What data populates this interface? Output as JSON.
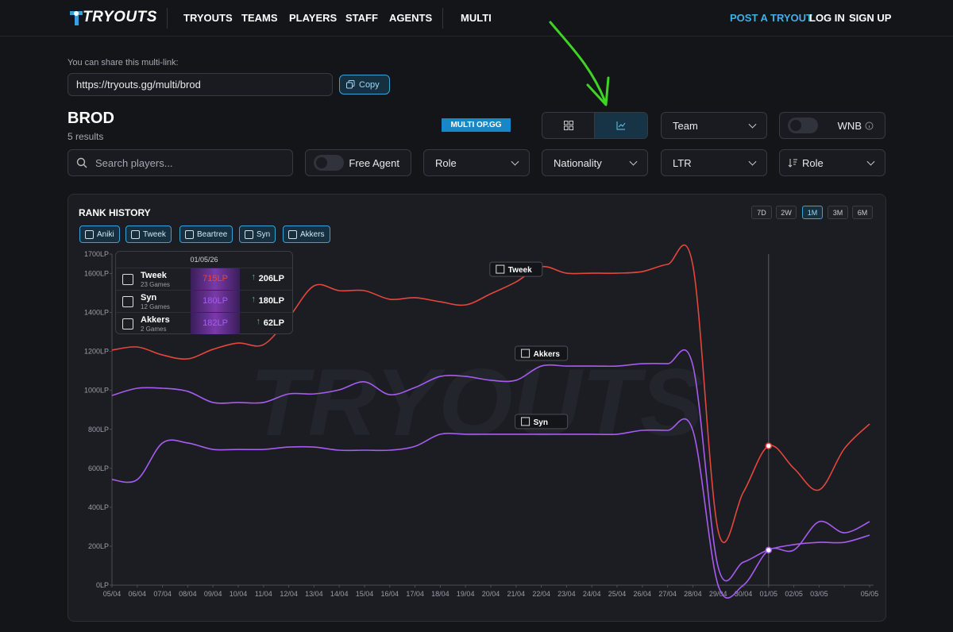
{
  "nav": {
    "logo": "TRYOUTS",
    "links": [
      "TRYOUTS",
      "TEAMS",
      "PLAYERS",
      "STAFF",
      "AGENTS",
      "MULTI"
    ],
    "right": [
      "POST A TRYOUT",
      "LOG IN",
      "SIGN UP"
    ]
  },
  "share": {
    "label": "You can share this multi-link:",
    "url": "https://tryouts.gg/multi/brod",
    "button": "Copy"
  },
  "header": {
    "title": "BROD",
    "subtitle": "5 results",
    "badge": "MULTI OP.GG"
  },
  "filters": {
    "team": "Team",
    "wnb": "WNB",
    "search": "Search players...",
    "free_agent": "Free Agent",
    "role": "Role",
    "nationality": "Nationality",
    "sort": "LTR",
    "sort_role": "Role"
  },
  "panel": {
    "title": "RANK HISTORY",
    "ranges": [
      "7D",
      "2W",
      "1M",
      "3M",
      "6M"
    ],
    "active_range": "1M",
    "players": [
      "Aniki",
      "Tweek",
      "Beartree",
      "Syn",
      "Akkers"
    ],
    "watermark": "TRYOUTS"
  },
  "tooltip": {
    "date": "01/05/26",
    "rows": [
      {
        "name": "Tweek",
        "games": "23 Games",
        "rank": "715LP",
        "gain": "206LP"
      },
      {
        "name": "Syn",
        "games": "12 Games",
        "rank": "180LP",
        "gain": "180LP"
      },
      {
        "name": "Akkers",
        "games": "2 Games",
        "rank": "182LP",
        "gain": "62LP"
      }
    ]
  },
  "chart_data": {
    "type": "line",
    "categories": [
      "05/04",
      "06/04",
      "07/04",
      "08/04",
      "09/04",
      "10/04",
      "11/04",
      "12/04",
      "13/04",
      "14/04",
      "15/04",
      "16/04",
      "17/04",
      "18/04",
      "19/04",
      "20/04",
      "21/04",
      "22/04",
      "23/04",
      "24/04",
      "25/04",
      "26/04",
      "27/04",
      "28/04",
      "29/04",
      "30/04",
      "01/05",
      "02/05",
      "03/05",
      null,
      "05/05"
    ],
    "series": [
      {
        "name": "Tweek",
        "color": "#e4463c",
        "values": [
          1207,
          1223,
          1182,
          1162,
          1211,
          1243,
          1235,
          1374,
          1537,
          1512,
          1512,
          1468,
          1476,
          1455,
          1439,
          1496,
          1557,
          1635,
          1602,
          1602,
          1602,
          1610,
          1647,
          1643,
          281,
          477,
          715,
          600,
          489,
          701,
          828
        ]
      },
      {
        "name": "Akkers",
        "color": "#a65cf0",
        "values": [
          974,
          1011,
          1011,
          995,
          938,
          938,
          938,
          982,
          982,
          1003,
          1044,
          978,
          1015,
          1072,
          1072,
          1052,
          1052,
          1125,
          1125,
          1125,
          1125,
          1137,
          1137,
          1129,
          94,
          118,
          182,
          208,
          220,
          220,
          257
        ]
      },
      {
        "name": "Syn",
        "color": "#a65cf0",
        "values": [
          542,
          542,
          730,
          730,
          697,
          697,
          697,
          709,
          709,
          693,
          693,
          693,
          713,
          775,
          775,
          775,
          775,
          775,
          775,
          775,
          775,
          795,
          795,
          795,
          0,
          0,
          180,
          180,
          326,
          269,
          326
        ]
      }
    ],
    "ylim": [
      0,
      1700
    ],
    "yticks": [
      {
        "value": 0,
        "label": "0LP"
      },
      {
        "value": 200,
        "label": "200LP"
      },
      {
        "value": 400,
        "label": "400LP"
      },
      {
        "value": 600,
        "label": "600LP"
      },
      {
        "value": 800,
        "label": "800LP"
      },
      {
        "value": 1000,
        "label": "1000LP"
      },
      {
        "value": 1200,
        "label": "1200LP"
      },
      {
        "value": 1400,
        "label": "1400LP"
      },
      {
        "value": 1600,
        "label": "1600LP"
      },
      {
        "value": 1700,
        "label": "1700LP"
      }
    ]
  }
}
